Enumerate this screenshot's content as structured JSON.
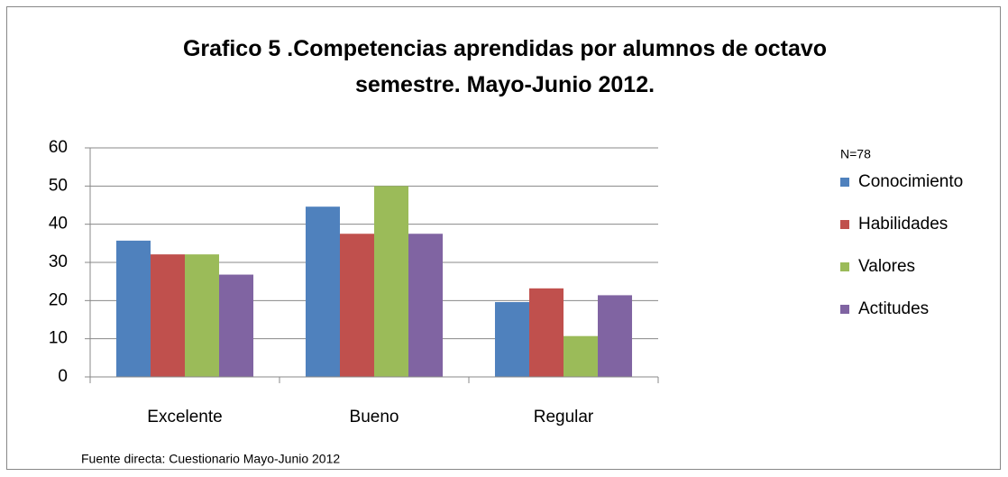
{
  "chart_data": {
    "type": "bar",
    "title": "Grafico 5 .Competencias aprendidas por alumnos de octavo semestre. Mayo-Junio 2012.",
    "annotations": [
      "N=78",
      "Fuente directa: Cuestionario Mayo-Junio 2012"
    ],
    "categories": [
      "Excelente",
      "Bueno",
      "Regular"
    ],
    "series": [
      {
        "name": "Conocimiento",
        "color": "#4f81bd",
        "values": [
          35.7,
          44.6,
          19.6
        ]
      },
      {
        "name": "Habilidades",
        "color": "#c0504d",
        "values": [
          32.1,
          37.5,
          23.2
        ]
      },
      {
        "name": "Valores",
        "color": "#9bbb59",
        "values": [
          32.1,
          50,
          10.7
        ]
      },
      {
        "name": "Actitudes",
        "color": "#8064a2",
        "values": [
          26.8,
          37.5,
          21.4
        ]
      }
    ],
    "ylim": [
      0,
      60
    ],
    "yticks": [
      0,
      10,
      20,
      30,
      40,
      50,
      60
    ],
    "grid": true,
    "legend": "right"
  }
}
